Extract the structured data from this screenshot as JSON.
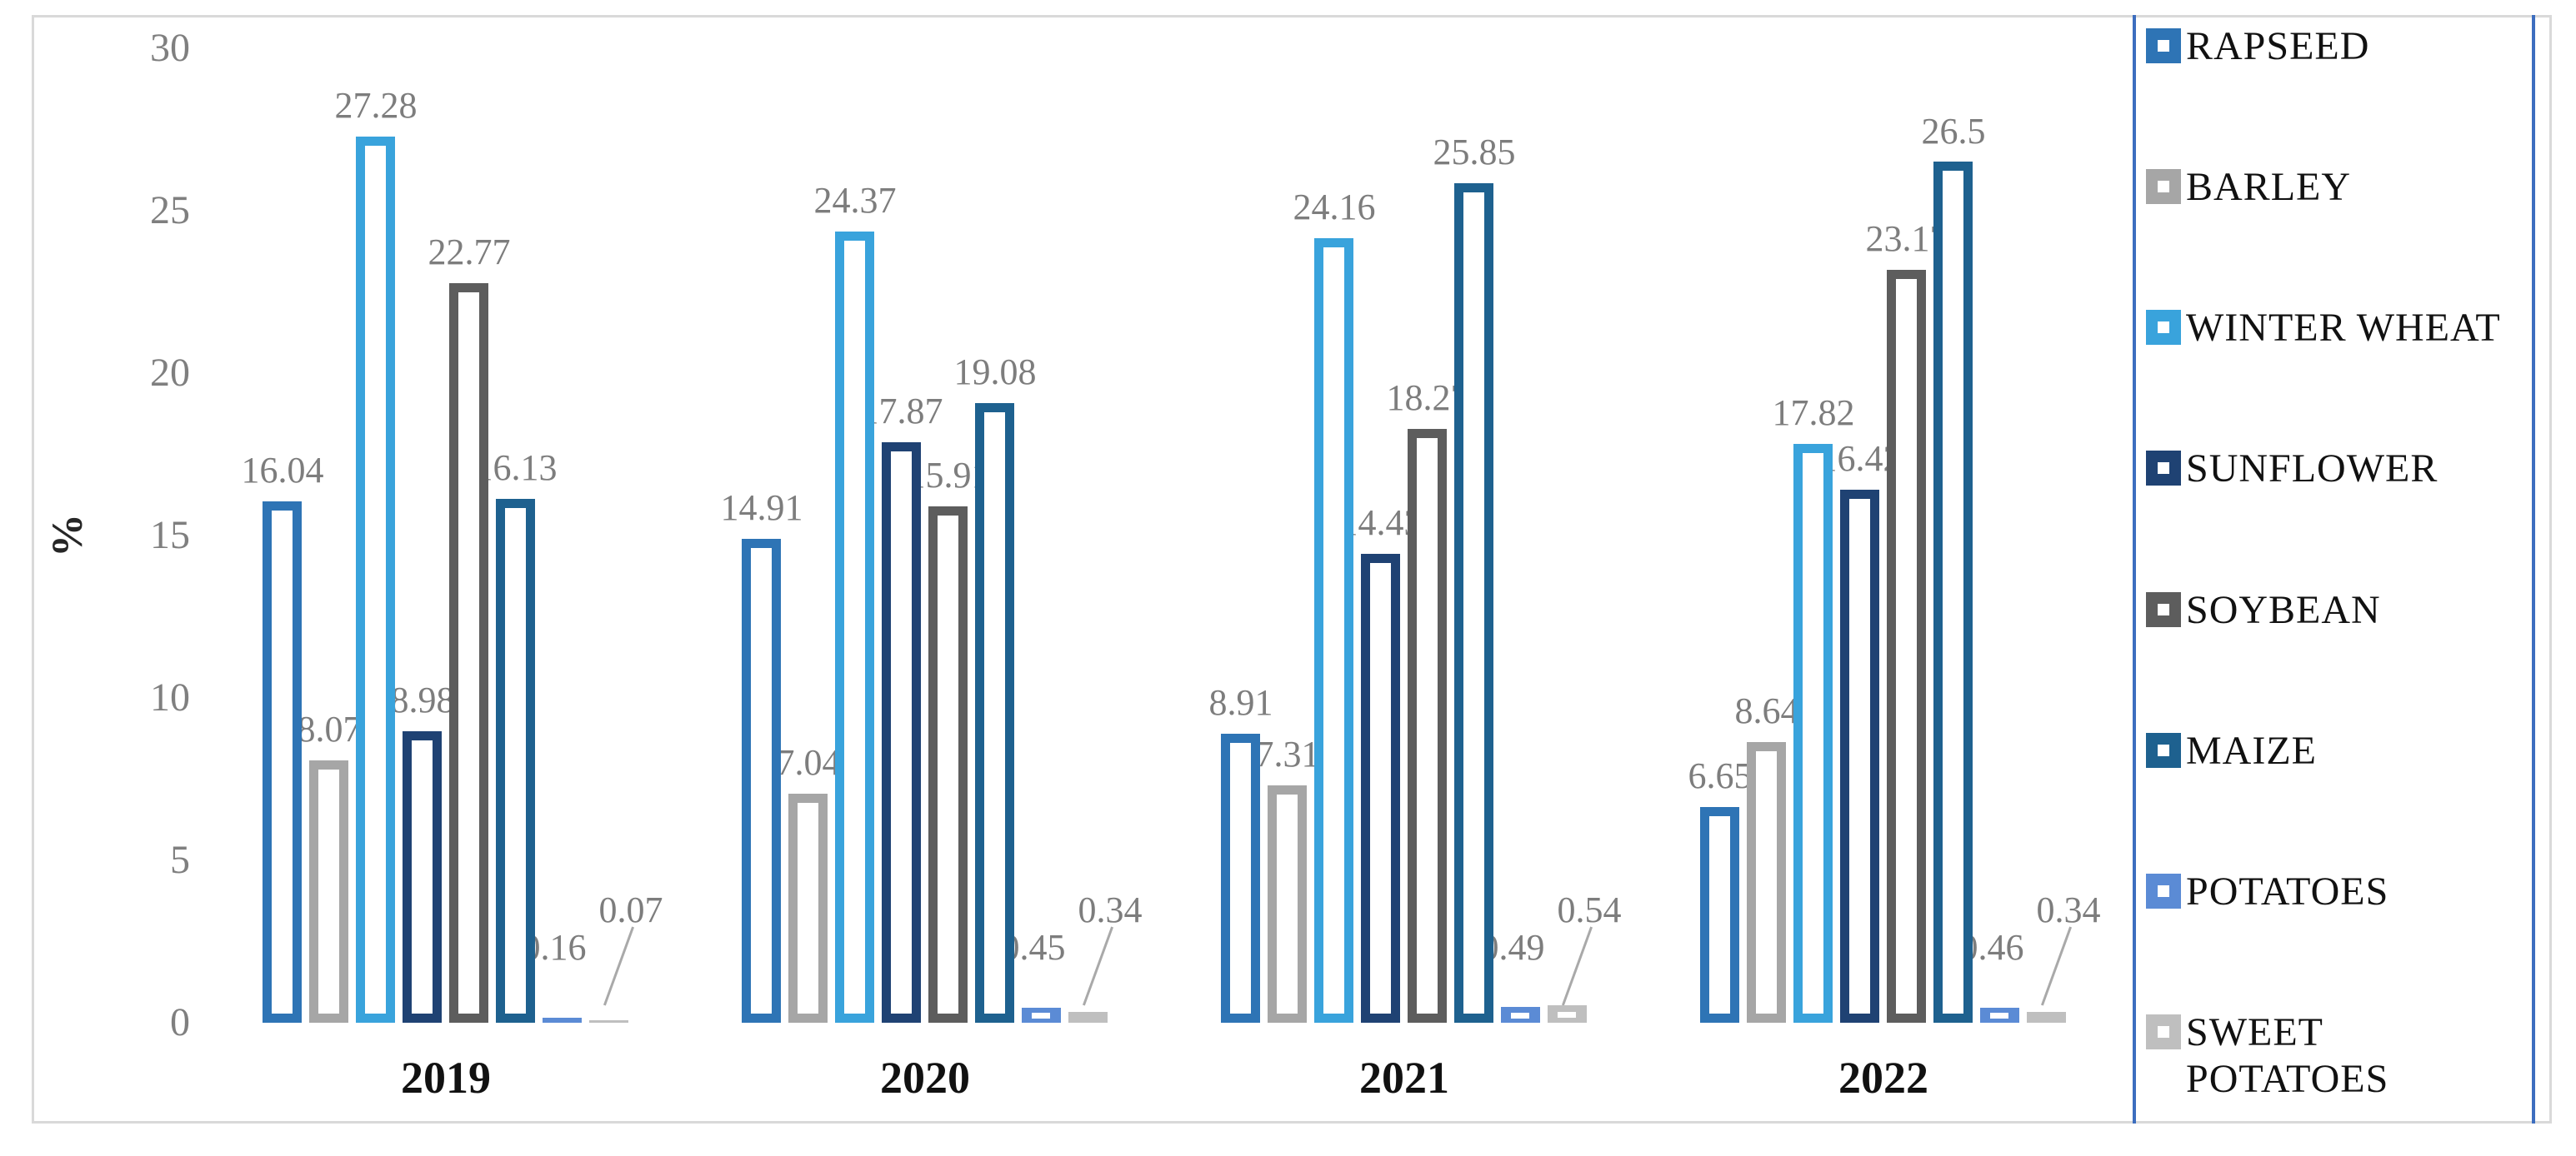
{
  "figure": {
    "background": "#ffffff",
    "border_color": "#d9d9d9",
    "legend_divider_color": "#3d6ebf",
    "label_color": "#7d7d7d",
    "axis_text_color": "#7f7f7f",
    "category_text_color": "#111111"
  },
  "chart_data": {
    "type": "bar",
    "bar_style": "outlined",
    "title": "",
    "xlabel": "",
    "ylabel": "%",
    "ylim": [
      0,
      30
    ],
    "yticks": [
      30,
      25,
      20,
      15,
      10,
      5,
      0
    ],
    "grid": false,
    "legend_position": "right",
    "categories": [
      "2019",
      "2020",
      "2021",
      "2022"
    ],
    "series": [
      {
        "name": "RAPSEED",
        "color": "#2e74b5",
        "values": [
          16.04,
          14.91,
          8.91,
          6.65
        ]
      },
      {
        "name": "BARLEY",
        "color": "#a6a6a6",
        "values": [
          8.07,
          7.04,
          7.31,
          8.64
        ]
      },
      {
        "name": "WINTER WHEAT",
        "color": "#39a3dc",
        "values": [
          27.28,
          24.37,
          24.16,
          17.82
        ]
      },
      {
        "name": "SUNFLOWER",
        "color": "#1f4273",
        "values": [
          8.98,
          17.87,
          14.43,
          16.42
        ]
      },
      {
        "name": "SOYBEAN",
        "color": "#5d5d5d",
        "values": [
          22.77,
          15.91,
          18.27,
          23.17
        ]
      },
      {
        "name": "MAIZE",
        "color": "#1e618f",
        "values": [
          16.13,
          19.08,
          25.85,
          26.5
        ]
      },
      {
        "name": "POTATOES",
        "color": "#5b8bd5",
        "values": [
          0.16,
          0.45,
          0.49,
          0.46
        ]
      },
      {
        "name": "SWEET POTATOES",
        "color": "#bfbfbf",
        "values": [
          0.07,
          0.34,
          0.54,
          0.34
        ]
      }
    ]
  }
}
